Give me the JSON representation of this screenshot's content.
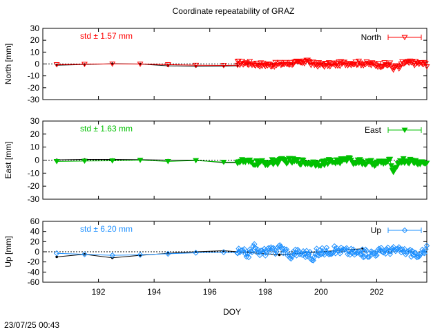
{
  "title": "Coordinate repeatability of GRAZ",
  "xlabel": "DOY",
  "timestamp": "23/07/25 00:43",
  "colors": {
    "north": "#ff0000",
    "east": "#00c000",
    "up": "#1e90ff",
    "ref": "#000000"
  },
  "chart_data": [
    {
      "type": "line",
      "panel": "north",
      "ylabel": "North [mm]",
      "std_label": "std ± 1.57 mm",
      "legend": "North",
      "legend_position": "top-right",
      "marker": "triangle-down-open",
      "xlim": [
        190,
        203.8
      ],
      "ylim": [
        -30,
        30
      ],
      "yticks": [
        30,
        20,
        10,
        0,
        -10,
        -20,
        -30
      ],
      "ref_series": {
        "x": [
          190.5,
          191.5,
          192.5,
          193.5,
          194.5,
          195.5,
          196.5,
          197.0
        ],
        "y": [
          -1.0,
          -0.4,
          0.2,
          0.0,
          -1.5,
          -2.0,
          -1.8,
          -1.5
        ]
      },
      "series": {
        "x": [
          190.5,
          191.5,
          192.5,
          193.5,
          194.5,
          195.5,
          196.5,
          197.0
        ],
        "y": [
          -0.5,
          -0.2,
          0.0,
          -0.1,
          -0.5,
          -1.0,
          -1.2,
          -1.0
        ]
      },
      "dense": {
        "x_start": 197.0,
        "x_end": 203.8,
        "step": 0.04,
        "base": 0.0,
        "amp": 2.0,
        "features": [
          {
            "x": 199.5,
            "y": 4.0
          },
          {
            "x": 202.6,
            "y": -5.0
          },
          {
            "x": 202.8,
            "y": -4.0
          }
        ]
      }
    },
    {
      "type": "line",
      "panel": "east",
      "ylabel": "East [mm]",
      "std_label": "std ± 1.63 mm",
      "legend": "East",
      "legend_position": "top-right",
      "marker": "triangle-down-filled",
      "xlim": [
        190,
        203.8
      ],
      "ylim": [
        -30,
        30
      ],
      "yticks": [
        30,
        20,
        10,
        0,
        -10,
        -20,
        -30
      ],
      "ref_series": {
        "x": [
          190.5,
          191.5,
          192.5,
          193.5,
          194.5,
          195.5,
          196.5,
          197.0
        ],
        "y": [
          0.2,
          0.5,
          0.5,
          0.3,
          0.0,
          0.0,
          -2.0,
          -2.0
        ]
      },
      "series": {
        "x": [
          190.5,
          191.5,
          192.5,
          193.5,
          194.5,
          195.5,
          196.5,
          197.0
        ],
        "y": [
          -1.0,
          -0.7,
          -0.5,
          0.0,
          -1.0,
          -0.3,
          -1.5,
          -1.5
        ]
      },
      "dense": {
        "x_start": 197.0,
        "x_end": 203.8,
        "step": 0.04,
        "base": -1.5,
        "amp": 2.2,
        "features": [
          {
            "x": 202.6,
            "y": -10.0
          },
          {
            "x": 202.7,
            "y": -6.0
          },
          {
            "x": 201.0,
            "y": 2.0
          }
        ]
      }
    },
    {
      "type": "line",
      "panel": "up",
      "ylabel": "Up [mm]",
      "std_label": "std ± 6.20 mm",
      "legend": "Up",
      "legend_position": "top-right",
      "marker": "diamond-open",
      "xlim": [
        190,
        203.8
      ],
      "ylim": [
        -60,
        60
      ],
      "yticks": [
        60,
        40,
        20,
        0,
        -20,
        -40,
        -60
      ],
      "ref_series": {
        "x": [
          190.5,
          191.5,
          192.5,
          193.5,
          194.5,
          195.5,
          196.5,
          198.5,
          201.5
        ],
        "y": [
          -10,
          -5,
          -12,
          -7,
          -3,
          0,
          2,
          -6,
          6
        ]
      },
      "series": {
        "x": [
          190.5,
          191.5,
          192.5,
          193.5,
          194.5,
          195.5,
          196.5,
          197.0
        ],
        "y": [
          -3,
          -5,
          -7,
          -6,
          -4,
          -2,
          -1,
          -2
        ]
      },
      "dense": {
        "x_start": 197.0,
        "x_end": 203.8,
        "step": 0.04,
        "base": 0.0,
        "amp": 8.0,
        "features": [
          {
            "x": 197.6,
            "y": 15
          },
          {
            "x": 198.5,
            "y": 14
          },
          {
            "x": 198.9,
            "y": -15
          },
          {
            "x": 199.7,
            "y": -20
          },
          {
            "x": 203.5,
            "y": -12
          },
          {
            "x": 203.8,
            "y": 12
          }
        ]
      }
    }
  ],
  "xticks": [
    192,
    194,
    196,
    198,
    200,
    202
  ]
}
